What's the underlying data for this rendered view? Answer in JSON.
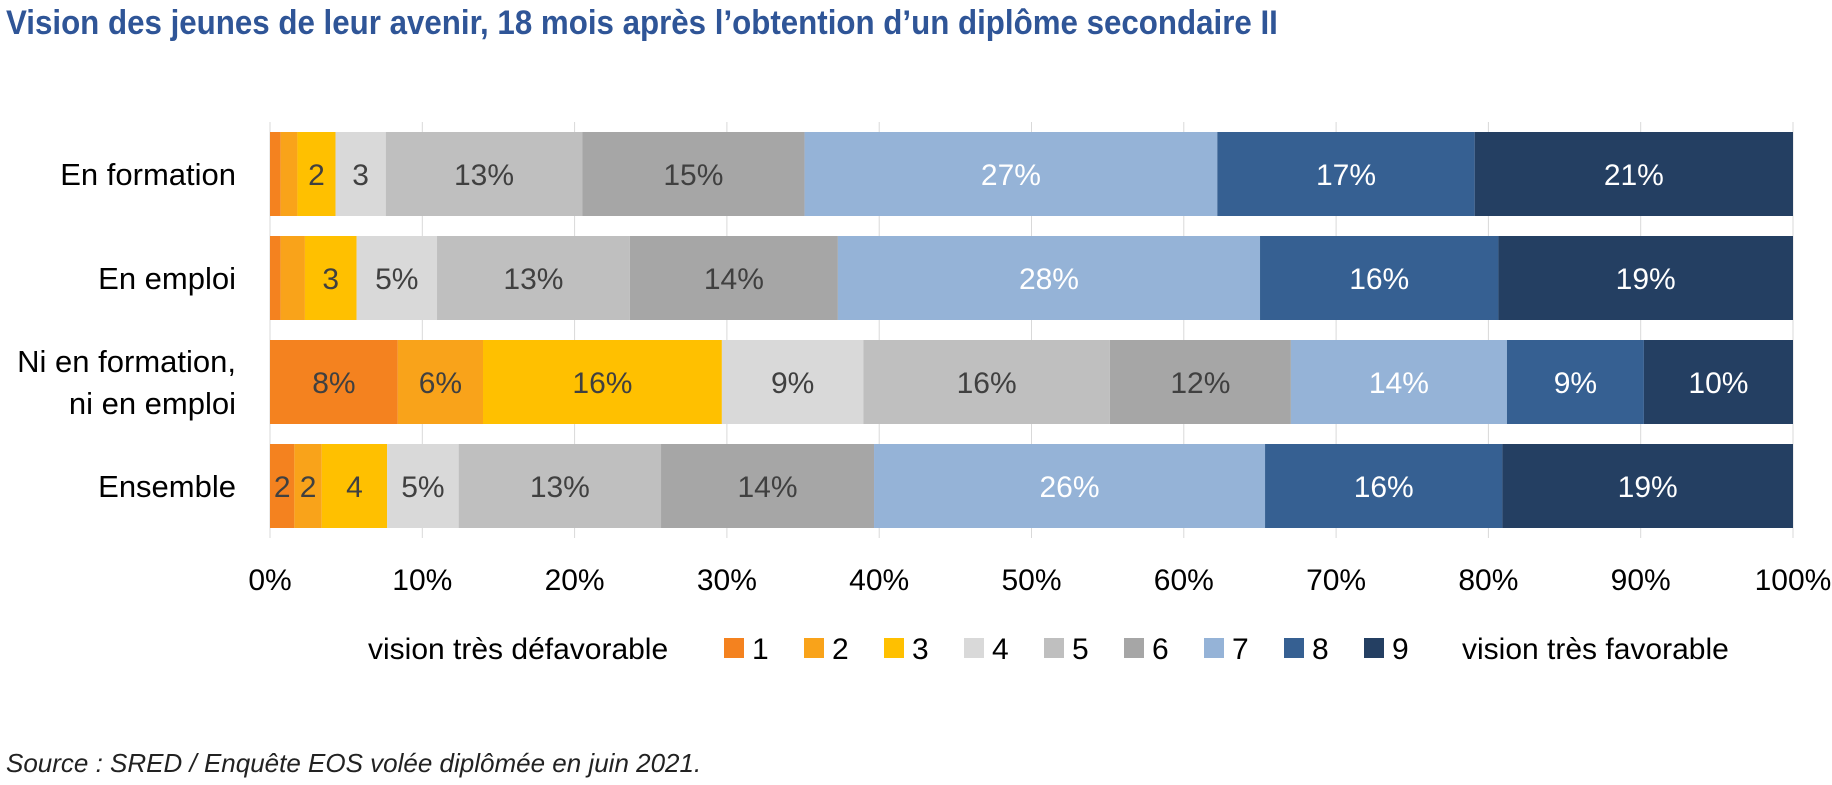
{
  "title": "Vision des jeunes de leur avenir, 18 mois après l’obtention d’un diplôme secondaire II",
  "source": "Source : SRED / Enquête EOS volée diplômée en juin 2021.",
  "legend": {
    "left_label": "vision très défavorable",
    "right_label": "vision très favorable"
  },
  "chart_data": {
    "type": "bar",
    "orientation": "horizontal",
    "stacked": true,
    "percent_stacked": true,
    "categories": [
      [
        "En formation"
      ],
      [
        "En emploi"
      ],
      [
        "Ni en formation,",
        "ni en emploi"
      ],
      [
        "Ensemble"
      ]
    ],
    "series": [
      {
        "name": "1",
        "color": "#f4821f",
        "values": [
          0.7,
          0.7,
          8.4,
          1.6
        ],
        "labels": [
          "",
          "",
          "8%",
          "2"
        ]
      },
      {
        "name": "2",
        "color": "#f9a31a",
        "values": [
          1.1,
          1.6,
          5.6,
          1.8
        ],
        "labels": [
          "",
          "",
          "6%",
          "2"
        ]
      },
      {
        "name": "3",
        "color": "#ffc000",
        "values": [
          2.5,
          3.4,
          15.7,
          4.3
        ],
        "labels": [
          "2",
          "3",
          "16%",
          "4"
        ]
      },
      {
        "name": "4",
        "color": "#d9d9d9",
        "values": [
          3.3,
          5.3,
          9.3,
          4.7
        ],
        "labels": [
          "3",
          "5%",
          "9%",
          "5%"
        ]
      },
      {
        "name": "5",
        "color": "#bfbfbf",
        "values": [
          12.9,
          12.7,
          16.2,
          13.3
        ],
        "labels": [
          "13%",
          "13%",
          "16%",
          "13%"
        ]
      },
      {
        "name": "6",
        "color": "#a6a6a6",
        "values": [
          14.6,
          13.7,
          11.9,
          14.0
        ],
        "labels": [
          "15%",
          "14%",
          "12%",
          "14%"
        ]
      },
      {
        "name": "7",
        "color": "#95b3d7",
        "values": [
          27.1,
          27.8,
          14.2,
          25.7
        ],
        "labels": [
          "27%",
          "28%",
          "14%",
          "26%"
        ]
      },
      {
        "name": "8",
        "color": "#366092",
        "values": [
          16.9,
          15.7,
          9.0,
          15.6
        ],
        "labels": [
          "17%",
          "16%",
          "9%",
          "16%"
        ]
      },
      {
        "name": "9",
        "color": "#243f62",
        "values": [
          20.9,
          19.4,
          9.8,
          19.1
        ],
        "labels": [
          "21%",
          "19%",
          "10%",
          "19%"
        ]
      }
    ],
    "xlim": [
      0,
      100
    ],
    "xticks": [
      "0%",
      "10%",
      "20%",
      "30%",
      "40%",
      "50%",
      "60%",
      "70%",
      "80%",
      "90%",
      "100%"
    ],
    "grid": "vertical",
    "legend_position": "bottom",
    "xlabel": "",
    "ylabel": ""
  }
}
